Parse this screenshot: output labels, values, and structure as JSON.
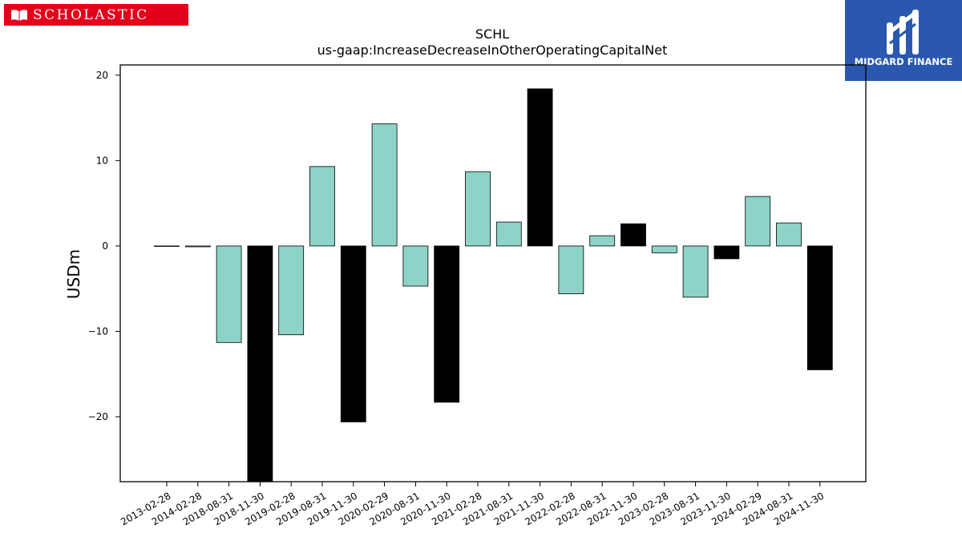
{
  "brand": {
    "name": "SCHOLASTIC",
    "icon": "open-book-icon",
    "color": "#e3001b"
  },
  "sponsor": {
    "name": "MIDGARD FINANCE",
    "icon": "midgard-mark-icon",
    "color": "#2a58b0"
  },
  "chart_data": {
    "type": "bar",
    "title": "SCHL",
    "subtitle": "us-gaap:IncreaseDecreaseInOtherOperatingCapitalNet",
    "xlabel": "",
    "ylabel": "USDm",
    "ylim": [
      -27.6,
      21.2
    ],
    "yticks": [
      20,
      10,
      0,
      -10,
      -20
    ],
    "ytick_labels": [
      "20",
      "10",
      "0",
      "−10",
      "−20"
    ],
    "grid": false,
    "colors": {
      "positive_fill": "#8dd3c7",
      "highlight_fill": "#000000",
      "edge": "#000000"
    },
    "categories": [
      "2013-02-28",
      "2014-02-28",
      "2018-08-31",
      "2018-11-30",
      "2019-02-28",
      "2019-08-31",
      "2019-11-30",
      "2020-02-29",
      "2020-08-31",
      "2020-11-30",
      "2021-02-28",
      "2021-08-31",
      "2021-11-30",
      "2022-02-28",
      "2022-08-31",
      "2022-11-30",
      "2023-02-28",
      "2023-08-31",
      "2023-11-30",
      "2024-02-29",
      "2024-08-31",
      "2024-11-30"
    ],
    "values": [
      0.0,
      -0.1,
      -11.3,
      -28.5,
      -10.4,
      9.3,
      -20.6,
      14.3,
      -4.7,
      -18.3,
      8.7,
      2.8,
      18.4,
      -5.6,
      1.2,
      2.6,
      -0.8,
      -6.0,
      -1.5,
      5.8,
      2.7,
      -14.5
    ],
    "highlight": [
      false,
      false,
      false,
      true,
      false,
      false,
      true,
      false,
      false,
      true,
      false,
      false,
      true,
      false,
      false,
      true,
      false,
      false,
      true,
      false,
      false,
      true
    ]
  }
}
